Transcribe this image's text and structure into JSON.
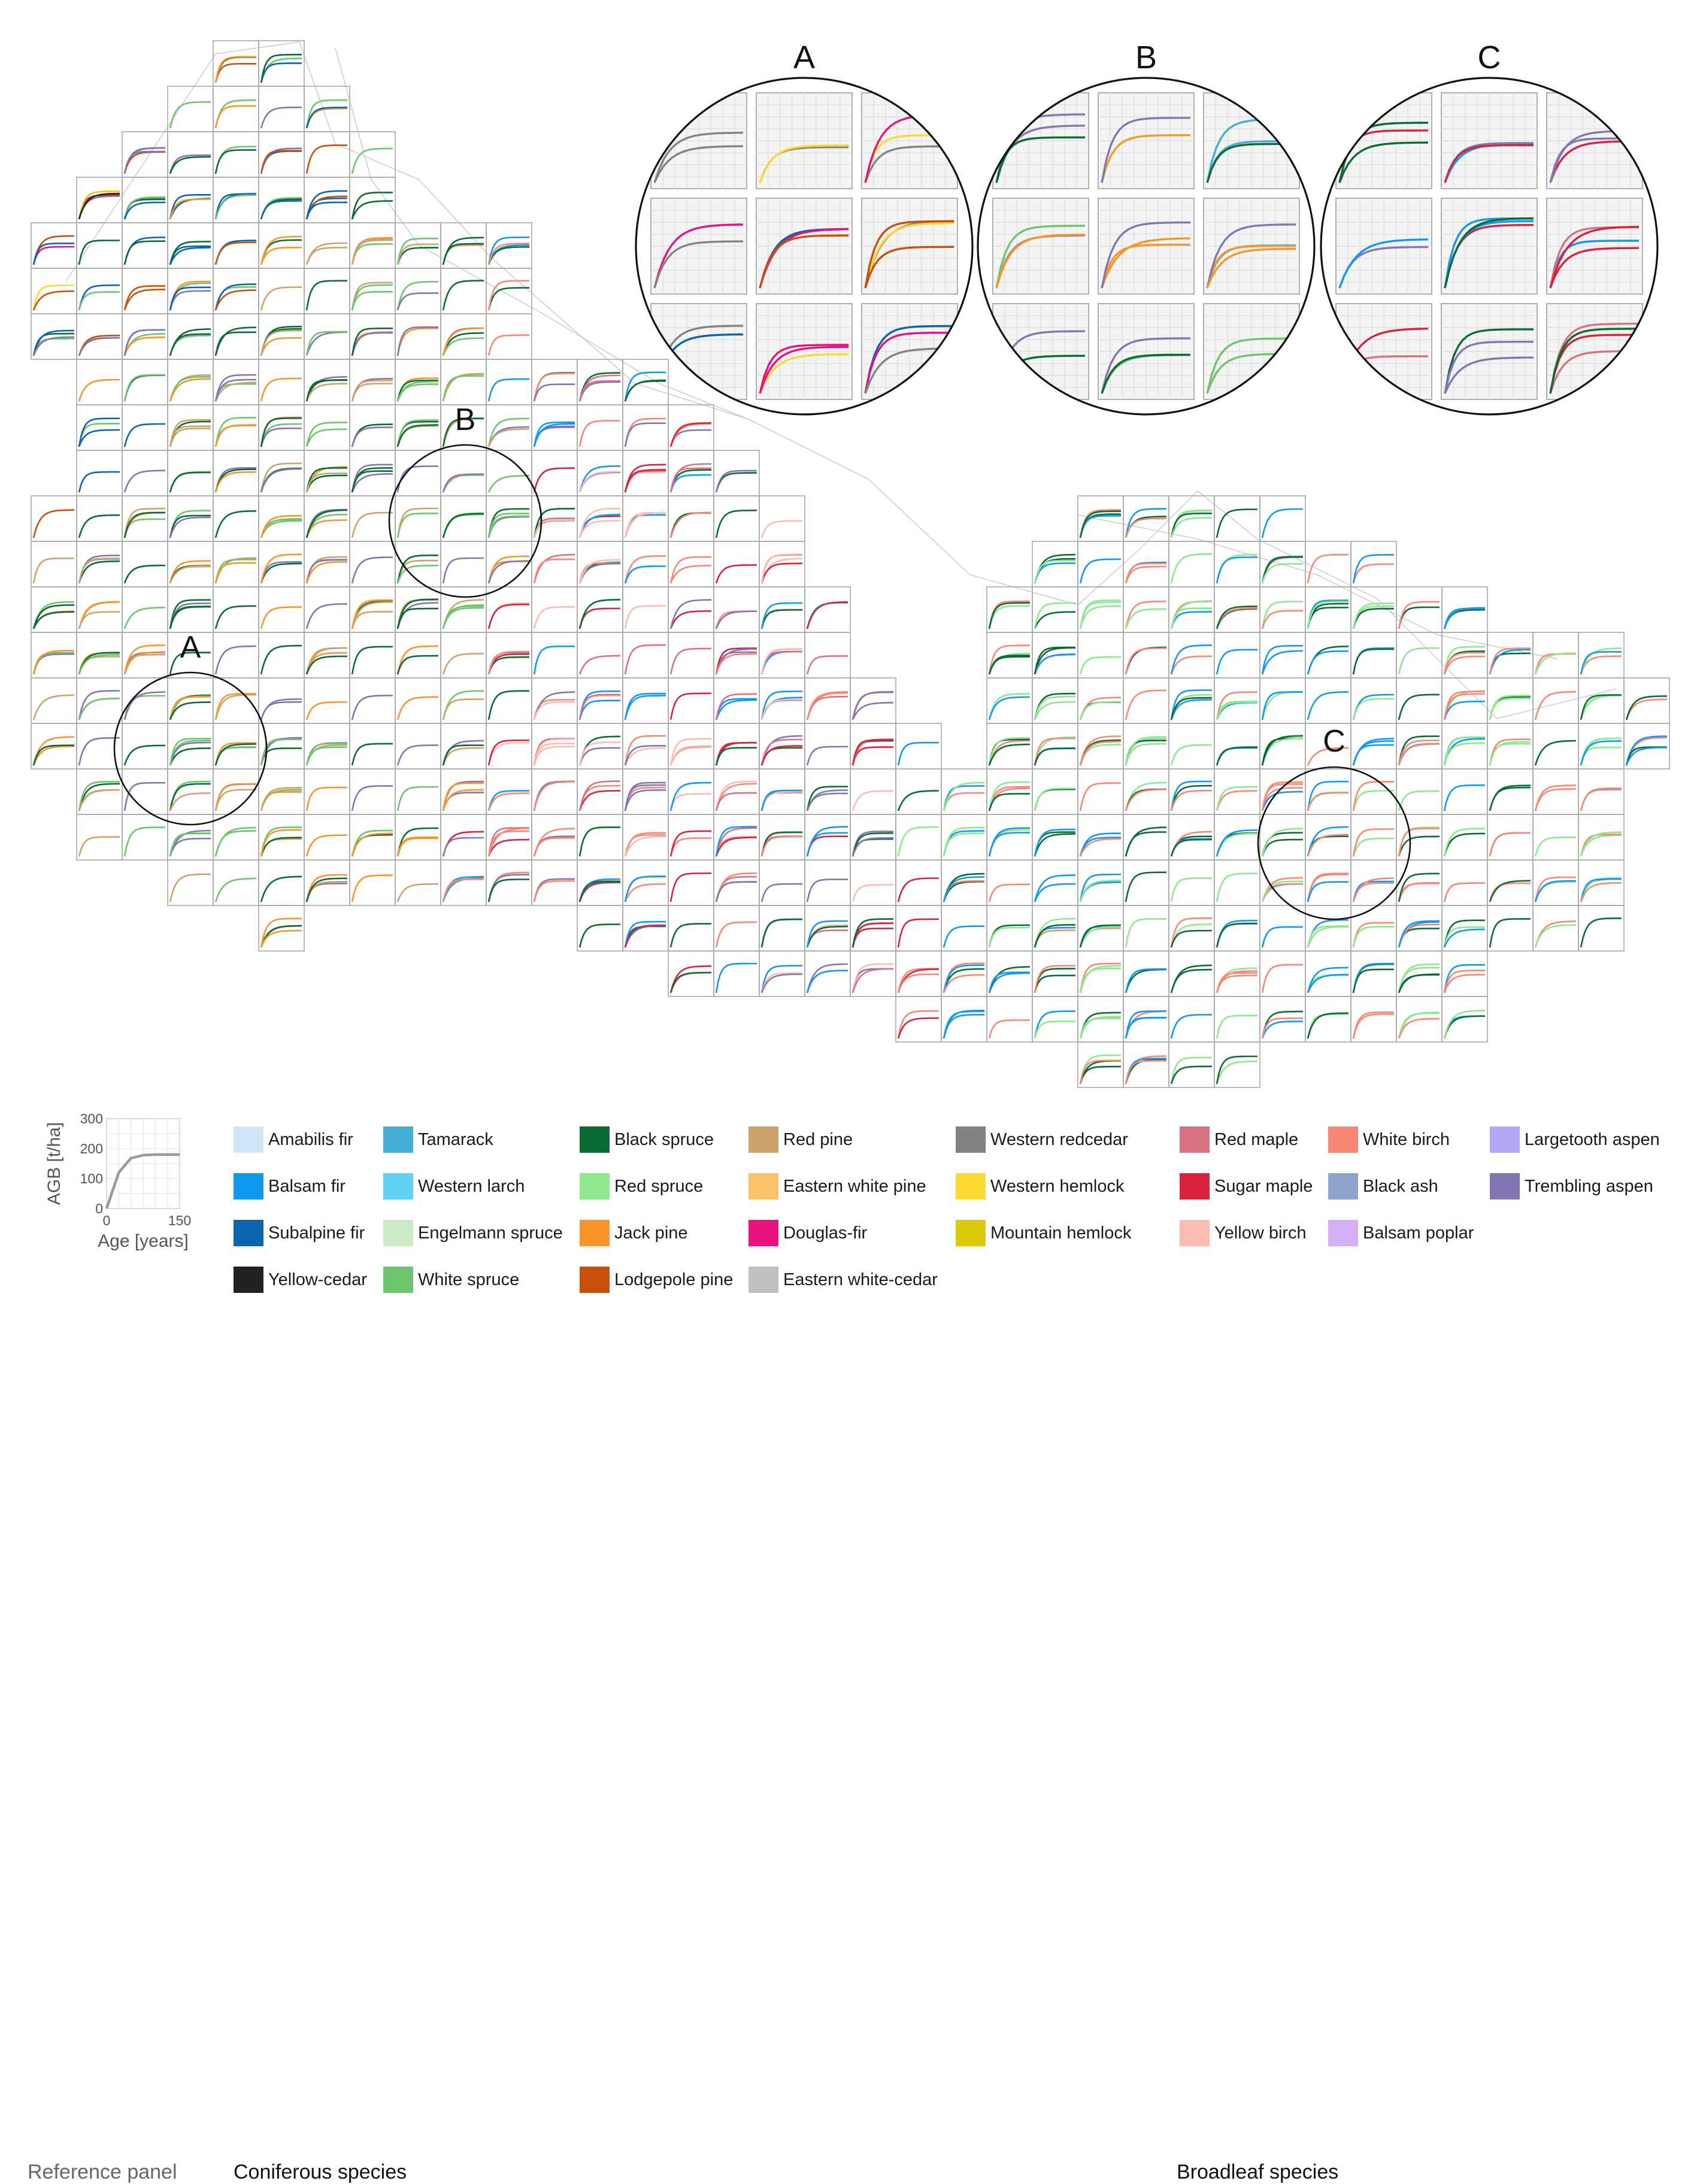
{
  "figure": {
    "inset_labels": [
      "A",
      "B",
      "C"
    ],
    "map_labels": [
      "A",
      "B",
      "C"
    ]
  },
  "reference_panel": {
    "title": "Reference panel",
    "ylabel": "AGB [t/ha]",
    "xlabel": "Age [years]",
    "yticks": [
      "300",
      "200",
      "100",
      "0"
    ],
    "xticks": [
      "0",
      "150"
    ]
  },
  "legend": {
    "coniferous_title": "Coniferous species",
    "broadleaf_title": "Broadleaf species",
    "coniferous": [
      {
        "label": "Amabilis fir",
        "color": "#cfe6f8"
      },
      {
        "label": "Balsam fir",
        "color": "#1199f0"
      },
      {
        "label": "Subalpine fir",
        "color": "#0b64b0"
      },
      {
        "label": "Yellow-cedar",
        "color": "#222222"
      },
      {
        "label": "Tamarack",
        "color": "#45afd4"
      },
      {
        "label": "Western larch",
        "color": "#5ed3f7"
      },
      {
        "label": "Engelmann spruce",
        "color": "#cdeac7"
      },
      {
        "label": "White spruce",
        "color": "#6fc46f"
      },
      {
        "label": "Black spruce",
        "color": "#0a6b34"
      },
      {
        "label": "Red spruce",
        "color": "#8ee88e"
      },
      {
        "label": "Jack pine",
        "color": "#f7962a"
      },
      {
        "label": "Lodgepole pine",
        "color": "#c8500b"
      },
      {
        "label": "Red pine",
        "color": "#cda36c"
      },
      {
        "label": "Eastern white pine",
        "color": "#fcc36a"
      },
      {
        "label": "Douglas-fir",
        "color": "#e8117f"
      },
      {
        "label": "Eastern white-cedar",
        "color": "#c0c0c0"
      },
      {
        "label": "Western redcedar",
        "color": "#838383"
      },
      {
        "label": "Western hemlock",
        "color": "#fbd932"
      },
      {
        "label": "Mountain hemlock",
        "color": "#dccb0b"
      }
    ],
    "broadleaf": [
      {
        "label": "Red maple",
        "color": "#d87281"
      },
      {
        "label": "Sugar maple",
        "color": "#d9223c"
      },
      {
        "label": "Yellow birch",
        "color": "#fbbcb2"
      },
      {
        "label": "White birch",
        "color": "#f98773"
      },
      {
        "label": "Black ash",
        "color": "#8fa4cd"
      },
      {
        "label": "Balsam poplar",
        "color": "#d6aef6"
      },
      {
        "label": "Largetooth aspen",
        "color": "#b4a6f6"
      },
      {
        "label": "Trembling aspen",
        "color": "#8475b3"
      }
    ]
  },
  "chart_data": {
    "type": "line",
    "description_of_encoding": "",
    "reference_panel": {
      "x": [
        0,
        25,
        50,
        75,
        100,
        125,
        150
      ],
      "y": [
        0,
        120,
        168,
        178,
        180,
        180,
        180
      ],
      "xlim": [
        0,
        150
      ],
      "ylim": [
        0,
        300
      ],
      "xlabel": "Age [years]",
      "ylabel": "AGB [t/ha]"
    }
  }
}
